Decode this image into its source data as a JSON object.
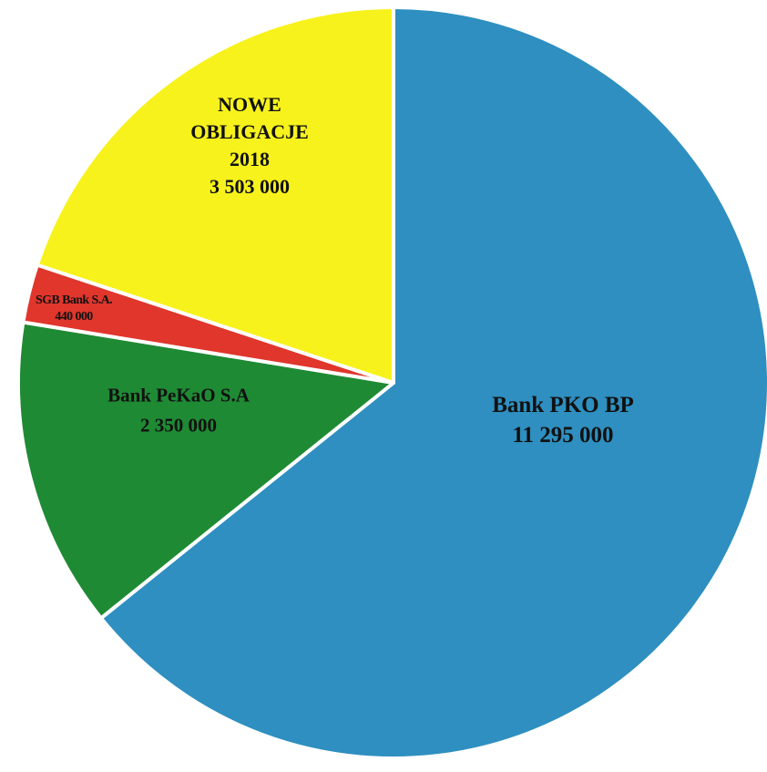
{
  "chart_data": {
    "type": "pie",
    "title": "",
    "slices": [
      {
        "label_lines": [
          "Bank PKO BP"
        ],
        "value": 11295000,
        "value_text": "11 295 000",
        "color": "#2e8fc0"
      },
      {
        "label_lines": [
          "Bank PeKaO S.A"
        ],
        "value": 2350000,
        "value_text": "2 350 000",
        "color": "#1f8a34"
      },
      {
        "label_lines": [
          "SGB Bank S.A."
        ],
        "value": 440000,
        "value_text": "440 000",
        "color": "#e0362c"
      },
      {
        "label_lines": [
          "NOWE",
          "OBLIGACJE",
          "2018"
        ],
        "value": 3503000,
        "value_text": "3 503 000",
        "color": "#f7f21c"
      }
    ],
    "start_direction": "12 o'clock",
    "direction": "clockwise",
    "legend": "none",
    "data_labels": "inside"
  }
}
